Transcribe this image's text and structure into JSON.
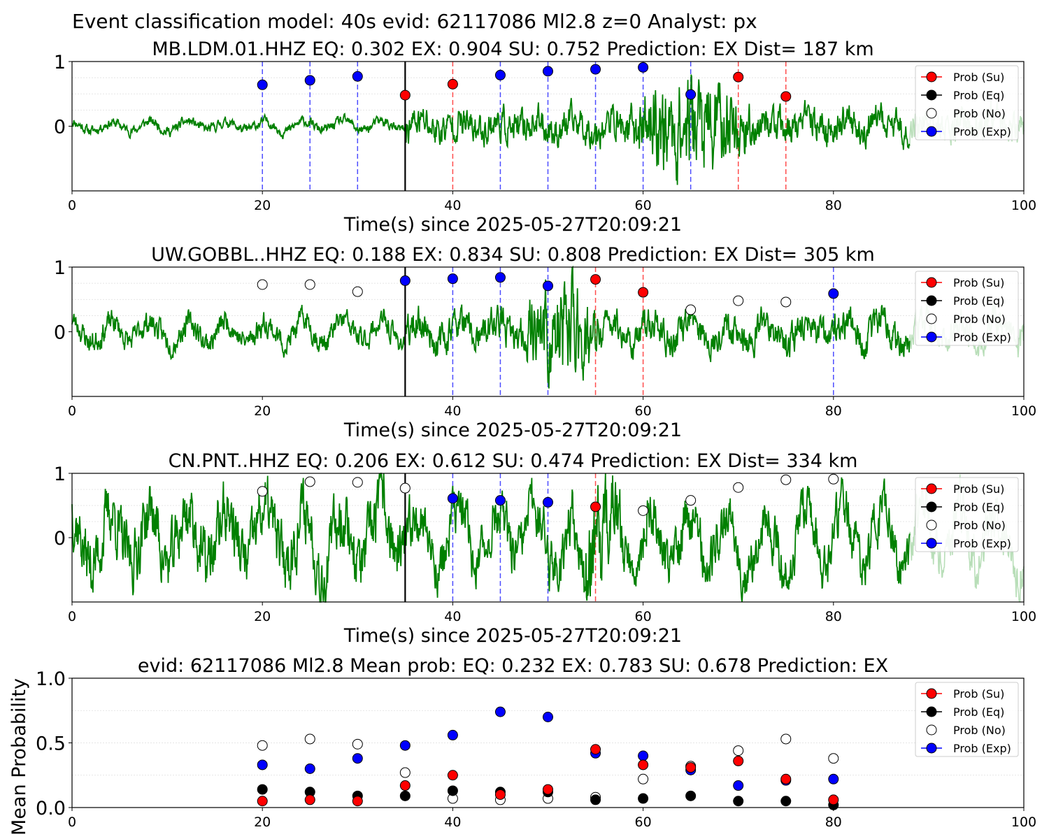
{
  "suptitle": "Event classification model: 40s evid: 62117086 Ml2.8 z=0 Analyst: px",
  "legend": [
    "Prob (Su)",
    "Prob (Eq)",
    "Prob (No)",
    "Prob (Exp)"
  ],
  "colors": {
    "su": "#ff0000",
    "eq": "#000000",
    "no": "#ffffff",
    "exp": "#0000ff",
    "trace": "#008000",
    "trace_faded": "#b8deb8",
    "vline_su": "#ff4d4d",
    "vline_exp": "#4d4dff",
    "pick": "#000000"
  },
  "chart_data": [
    {
      "type": "scatter",
      "title": "MB.LDM.01.HHZ   EQ: 0.302  EX: 0.904  SU: 0.752   Prediction: EX    Dist= 187 km",
      "xlabel": "Time(s) since 2025-05-27T20:09:21",
      "ylabel": "",
      "xlim": [
        0,
        100
      ],
      "ylim": [
        -1,
        1
      ],
      "xticks": [
        "0",
        "20",
        "40",
        "60",
        "80",
        "100"
      ],
      "yticks": [
        "0",
        "1"
      ],
      "pick_time": 35,
      "trace": {
        "seed": 11,
        "pre_amp": 0.06,
        "post_amp": 0.22,
        "burst_start": 58,
        "burst_end": 72,
        "burst_amp": 0.5,
        "fade_from": 88
      },
      "points": [
        {
          "x": 20,
          "y": 0.64,
          "class": "exp"
        },
        {
          "x": 25,
          "y": 0.71,
          "class": "exp"
        },
        {
          "x": 30,
          "y": 0.77,
          "class": "exp"
        },
        {
          "x": 35,
          "y": 0.48,
          "class": "su"
        },
        {
          "x": 40,
          "y": 0.65,
          "class": "su"
        },
        {
          "x": 45,
          "y": 0.79,
          "class": "exp"
        },
        {
          "x": 50,
          "y": 0.85,
          "class": "exp"
        },
        {
          "x": 55,
          "y": 0.88,
          "class": "exp"
        },
        {
          "x": 60,
          "y": 0.91,
          "class": "exp"
        },
        {
          "x": 65,
          "y": 0.49,
          "class": "exp"
        },
        {
          "x": 70,
          "y": 0.76,
          "class": "su"
        },
        {
          "x": 75,
          "y": 0.46,
          "class": "su"
        }
      ]
    },
    {
      "type": "scatter",
      "title": "UW.GOBBL..HHZ   EQ: 0.188  EX: 0.834  SU: 0.808   Prediction: EX    Dist= 305 km",
      "xlabel": "Time(s) since 2025-05-27T20:09:21",
      "ylabel": "",
      "xlim": [
        0,
        100
      ],
      "ylim": [
        -1,
        1
      ],
      "xticks": [
        "0",
        "20",
        "40",
        "60",
        "80",
        "100"
      ],
      "yticks": [
        "0",
        "1"
      ],
      "pick_time": 35,
      "trace": {
        "seed": 23,
        "pre_amp": 0.14,
        "post_amp": 0.2,
        "burst_start": 47,
        "burst_end": 56,
        "burst_amp": 0.55,
        "fade_from": 88
      },
      "points": [
        {
          "x": 20,
          "y": 0.73,
          "class": "no"
        },
        {
          "x": 25,
          "y": 0.73,
          "class": "no"
        },
        {
          "x": 30,
          "y": 0.62,
          "class": "no"
        },
        {
          "x": 35,
          "y": 0.79,
          "class": "exp"
        },
        {
          "x": 40,
          "y": 0.82,
          "class": "exp"
        },
        {
          "x": 45,
          "y": 0.84,
          "class": "exp"
        },
        {
          "x": 50,
          "y": 0.71,
          "class": "exp"
        },
        {
          "x": 55,
          "y": 0.81,
          "class": "su"
        },
        {
          "x": 60,
          "y": 0.61,
          "class": "su"
        },
        {
          "x": 65,
          "y": 0.34,
          "class": "no"
        },
        {
          "x": 70,
          "y": 0.48,
          "class": "no"
        },
        {
          "x": 75,
          "y": 0.46,
          "class": "no"
        },
        {
          "x": 80,
          "y": 0.59,
          "class": "exp"
        }
      ]
    },
    {
      "type": "scatter",
      "title": "CN.PNT..HHZ   EQ: 0.206  EX: 0.612  SU: 0.474   Prediction: EX    Dist= 334 km",
      "xlabel": "Time(s) since 2025-05-27T20:09:21",
      "ylabel": "",
      "xlim": [
        0,
        100
      ],
      "ylim": [
        -1,
        1
      ],
      "xticks": [
        "0",
        "20",
        "40",
        "60",
        "80",
        "100"
      ],
      "yticks": [
        "0",
        "1"
      ],
      "pick_time": 35,
      "trace": {
        "seed": 37,
        "pre_amp": 0.38,
        "post_amp": 0.3,
        "burst_start": 52,
        "burst_end": 58,
        "burst_amp": 0.45,
        "fade_from": 88
      },
      "points": [
        {
          "x": 20,
          "y": 0.72,
          "class": "no"
        },
        {
          "x": 25,
          "y": 0.87,
          "class": "no"
        },
        {
          "x": 30,
          "y": 0.86,
          "class": "no"
        },
        {
          "x": 35,
          "y": 0.77,
          "class": "no"
        },
        {
          "x": 40,
          "y": 0.61,
          "class": "exp"
        },
        {
          "x": 45,
          "y": 0.58,
          "class": "exp"
        },
        {
          "x": 50,
          "y": 0.55,
          "class": "exp"
        },
        {
          "x": 55,
          "y": 0.48,
          "class": "su"
        },
        {
          "x": 60,
          "y": 0.42,
          "class": "no"
        },
        {
          "x": 65,
          "y": 0.58,
          "class": "no"
        },
        {
          "x": 70,
          "y": 0.78,
          "class": "no"
        },
        {
          "x": 75,
          "y": 0.9,
          "class": "no"
        },
        {
          "x": 80,
          "y": 0.91,
          "class": "no"
        }
      ]
    },
    {
      "type": "scatter",
      "title": "evid: 62117086  Ml2.8   Mean prob:   EQ: 0.232  EX: 0.783  SU: 0.678   Prediction: EX",
      "xlabel": "",
      "ylabel": "Mean Probability",
      "xlim": [
        0,
        100
      ],
      "ylim": [
        0,
        1
      ],
      "xticks": [
        "0",
        "20",
        "40",
        "60",
        "80",
        "100"
      ],
      "yticks": [
        "0.0",
        "0.5",
        "1.0"
      ],
      "x": [
        20,
        25,
        30,
        35,
        40,
        45,
        50,
        55,
        60,
        65,
        70,
        75,
        80
      ],
      "series": [
        {
          "name": "Prob (No)",
          "class": "no",
          "values": [
            0.48,
            0.53,
            0.49,
            0.27,
            0.07,
            0.06,
            0.07,
            0.08,
            0.22,
            0.32,
            0.44,
            0.53,
            0.38
          ]
        },
        {
          "name": "Prob (Exp)",
          "class": "exp",
          "values": [
            0.33,
            0.3,
            0.38,
            0.48,
            0.56,
            0.74,
            0.7,
            0.42,
            0.4,
            0.29,
            0.17,
            0.21,
            0.22
          ]
        },
        {
          "name": "Prob (Eq)",
          "class": "eq",
          "values": [
            0.14,
            0.12,
            0.09,
            0.09,
            0.13,
            0.12,
            0.12,
            0.06,
            0.07,
            0.09,
            0.05,
            0.05,
            0.02
          ]
        },
        {
          "name": "Prob (Su)",
          "class": "su",
          "values": [
            0.05,
            0.06,
            0.05,
            0.17,
            0.25,
            0.1,
            0.14,
            0.45,
            0.33,
            0.31,
            0.36,
            0.22,
            0.06
          ]
        }
      ]
    }
  ]
}
